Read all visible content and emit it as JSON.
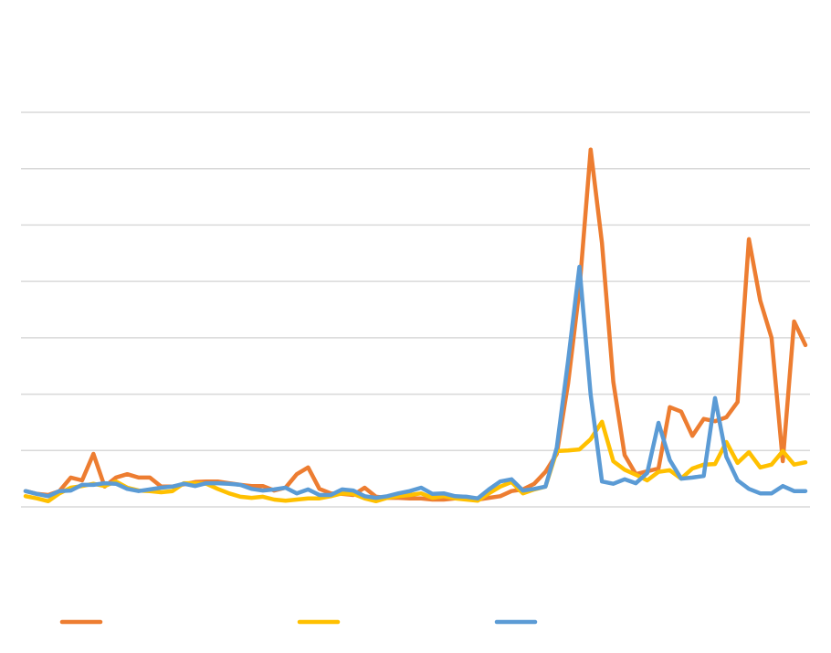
{
  "chart_data": {
    "type": "line",
    "series": [
      {
        "color": "#ed7d31",
        "values": [
          0.28,
          0.23,
          0.21,
          0.28,
          0.52,
          0.47,
          0.94,
          0.36,
          0.52,
          0.58,
          0.52,
          0.52,
          0.36,
          0.36,
          0.4,
          0.44,
          0.45,
          0.45,
          0.42,
          0.39,
          0.37,
          0.37,
          0.29,
          0.34,
          0.58,
          0.7,
          0.32,
          0.24,
          0.23,
          0.21,
          0.34,
          0.18,
          0.16,
          0.16,
          0.15,
          0.15,
          0.13,
          0.13,
          0.15,
          0.15,
          0.13,
          0.16,
          0.19,
          0.28,
          0.31,
          0.41,
          0.62,
          0.94,
          2.19,
          3.86,
          6.34,
          4.68,
          2.22,
          0.92,
          0.58,
          0.63,
          0.68,
          1.77,
          1.69,
          1.26,
          1.56,
          1.52,
          1.59,
          1.86,
          4.75,
          3.66,
          3.0,
          0.81,
          3.29,
          2.87
        ]
      },
      {
        "color": "#ffc000",
        "values": [
          0.19,
          0.15,
          0.1,
          0.24,
          0.34,
          0.37,
          0.41,
          0.37,
          0.45,
          0.34,
          0.29,
          0.28,
          0.26,
          0.28,
          0.42,
          0.42,
          0.41,
          0.32,
          0.24,
          0.18,
          0.16,
          0.18,
          0.13,
          0.11,
          0.13,
          0.15,
          0.15,
          0.19,
          0.24,
          0.23,
          0.15,
          0.1,
          0.16,
          0.19,
          0.21,
          0.24,
          0.16,
          0.19,
          0.15,
          0.13,
          0.11,
          0.24,
          0.36,
          0.44,
          0.24,
          0.31,
          0.36,
          0.99,
          1.0,
          1.02,
          1.2,
          1.51,
          0.81,
          0.66,
          0.57,
          0.47,
          0.62,
          0.65,
          0.5,
          0.68,
          0.75,
          0.76,
          1.15,
          0.78,
          0.97,
          0.7,
          0.75,
          0.99,
          0.75,
          0.79
        ]
      },
      {
        "color": "#5b9bd5",
        "values": [
          0.28,
          0.23,
          0.19,
          0.28,
          0.29,
          0.39,
          0.39,
          0.42,
          0.41,
          0.32,
          0.28,
          0.31,
          0.34,
          0.36,
          0.41,
          0.37,
          0.42,
          0.42,
          0.41,
          0.39,
          0.32,
          0.29,
          0.31,
          0.34,
          0.24,
          0.31,
          0.21,
          0.21,
          0.31,
          0.29,
          0.19,
          0.16,
          0.19,
          0.24,
          0.28,
          0.34,
          0.23,
          0.24,
          0.19,
          0.18,
          0.15,
          0.31,
          0.45,
          0.49,
          0.29,
          0.32,
          0.36,
          1.05,
          2.59,
          4.26,
          1.99,
          0.45,
          0.41,
          0.49,
          0.42,
          0.6,
          1.49,
          0.83,
          0.5,
          0.52,
          0.55,
          1.93,
          0.89,
          0.47,
          0.32,
          0.24,
          0.24,
          0.37,
          0.28,
          0.28
        ]
      }
    ],
    "ylim": [
      0,
      7
    ],
    "yticks": [
      0,
      1,
      2,
      3,
      4,
      5,
      6,
      7
    ],
    "grid": true
  }
}
